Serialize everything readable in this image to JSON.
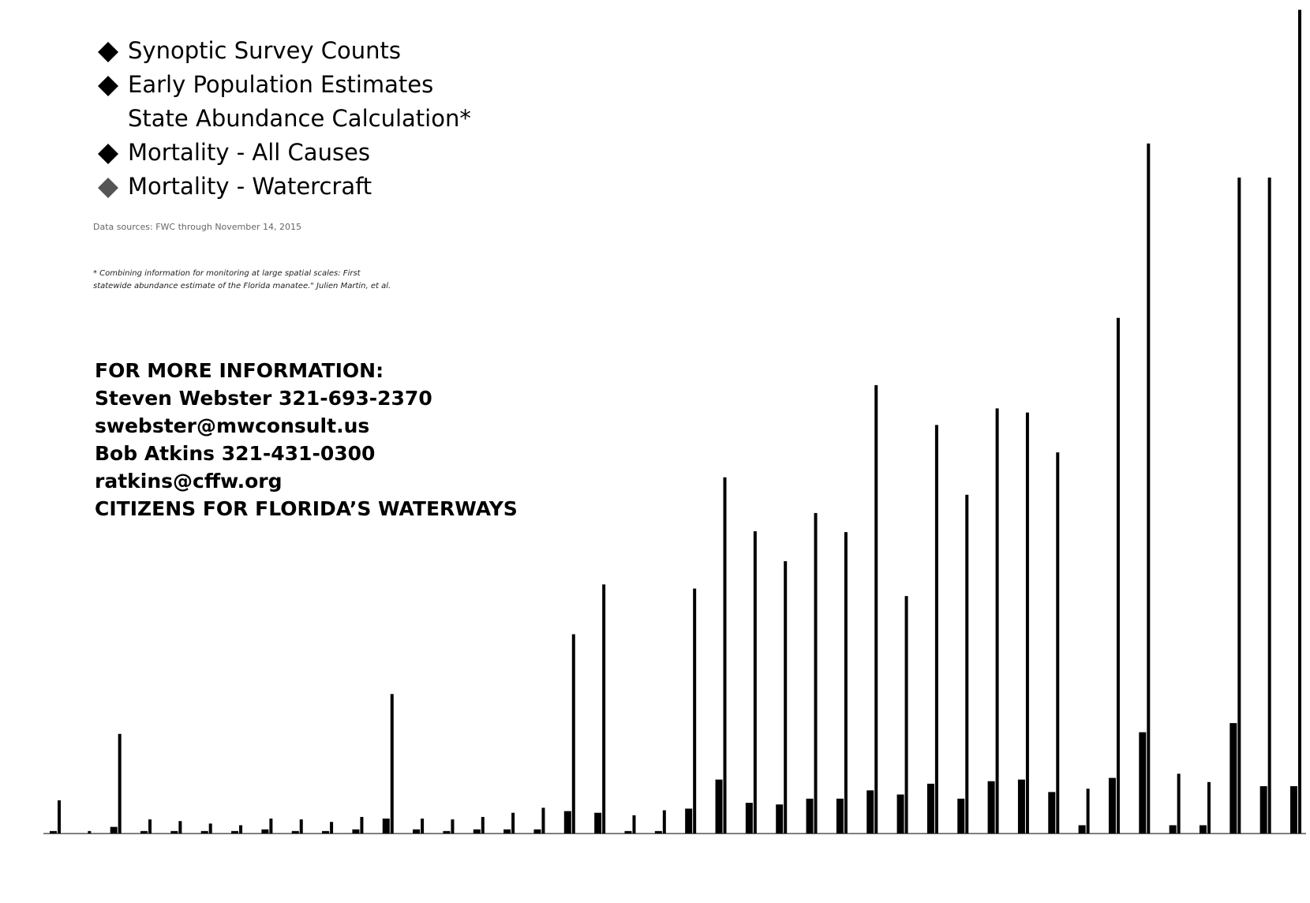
{
  "chart_data": {
    "type": "bar",
    "legend_items": [
      {
        "name": "Synoptic Survey Counts",
        "color": "#000000"
      },
      {
        "name": "Early Population Estimates",
        "color": "#000000"
      },
      {
        "name": "State Abundance Calculation*"
      },
      {
        "name": "Mortality - All Causes",
        "color": "#000000"
      },
      {
        "name": "Mortality - Watercraft",
        "color": "#555555"
      }
    ],
    "series": [
      {
        "name": "Mortality - All Causes",
        "color": "#000000",
        "values": [
          3,
          0,
          8,
          3,
          3,
          3,
          3,
          5,
          3,
          3,
          5,
          18,
          5,
          3,
          5,
          5,
          5,
          27,
          25,
          3,
          3,
          30,
          65,
          37,
          35,
          42,
          42,
          52,
          47,
          60,
          42,
          63,
          65,
          50,
          10,
          67,
          122,
          10,
          10,
          133,
          57,
          57
        ]
      },
      {
        "name": "Synoptic Survey Counts",
        "color": "#000000",
        "values": [
          40,
          3,
          120,
          17,
          15,
          12,
          10,
          18,
          17,
          14,
          20,
          168,
          18,
          17,
          20,
          25,
          31,
          240,
          300,
          22,
          28,
          295,
          429,
          364,
          328,
          386,
          363,
          540,
          286,
          492,
          408,
          512,
          507,
          459,
          54,
          621,
          831,
          72,
          62,
          790,
          790,
          992
        ]
      }
    ],
    "ylim": [
      0,
      1000
    ],
    "source_note": "Data sources: FWC through November 14, 2015",
    "footnote": [
      "* Combining information for monitoring at large spatial scales: First",
      "statewide abundance estimate of the Florida manatee.\" Julien Martin, et al."
    ],
    "contact": [
      "FOR MORE INFORMATION:",
      "Steven Webster 321-693-2370",
      "swebster@mwconsult.us",
      "Bob Atkins 321-431-0300",
      "ratkins@cffw.org",
      "CITIZENS FOR FLORIDA’S WATERWAYS"
    ]
  }
}
